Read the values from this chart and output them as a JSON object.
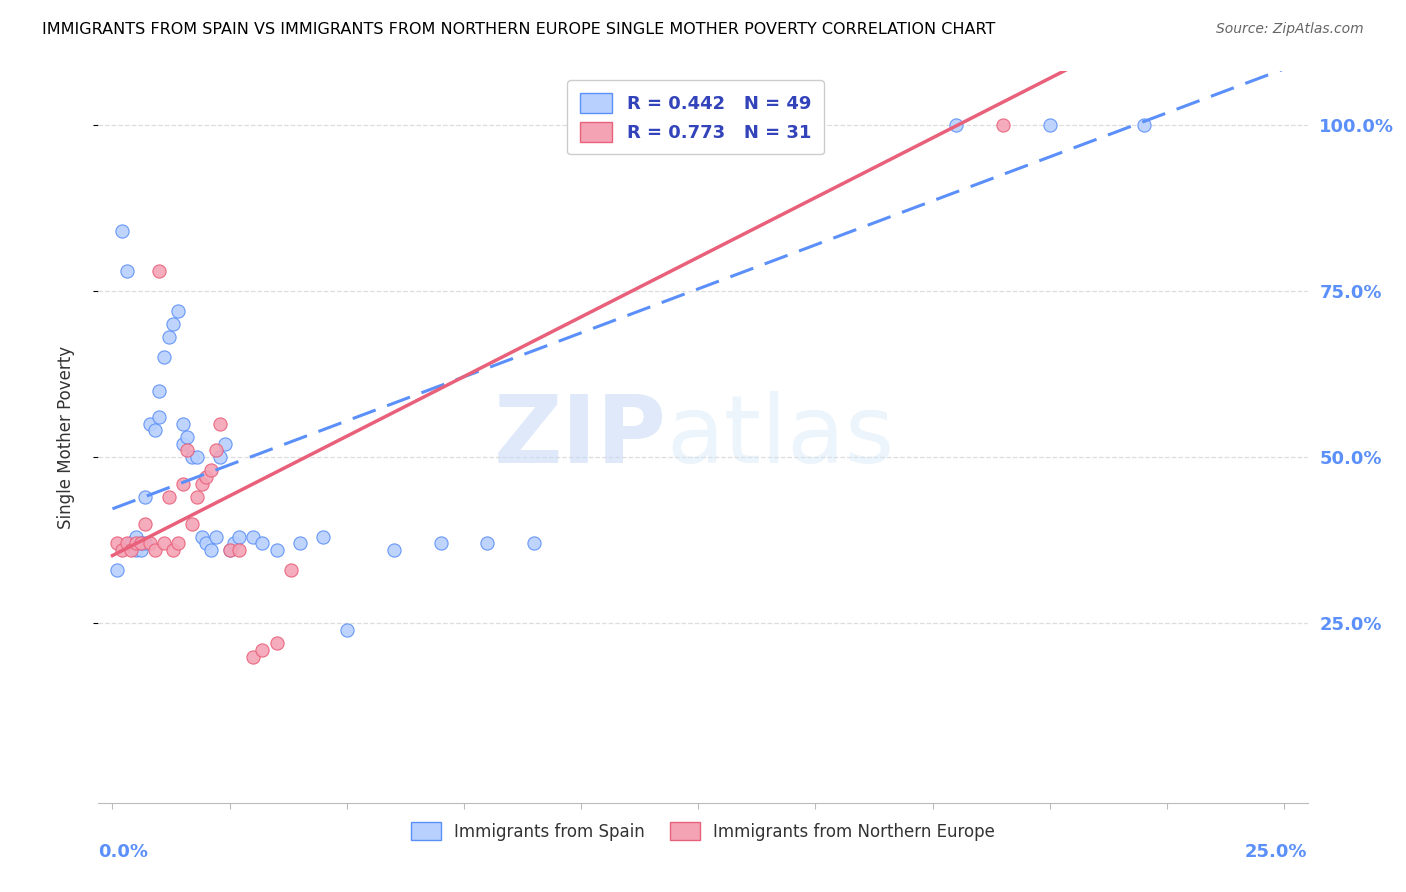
{
  "title": "IMMIGRANTS FROM SPAIN VS IMMIGRANTS FROM NORTHERN EUROPE SINGLE MOTHER POVERTY CORRELATION CHART",
  "source": "Source: ZipAtlas.com",
  "ylabel": "Single Mother Poverty",
  "spain_color": "#5b8ff9",
  "spain_color_light": "#b8d0fd",
  "northern_europe_color": "#f4a3b5",
  "northern_europe_color_dark": "#e8607a",
  "spain_R": 0.442,
  "spain_N": 49,
  "northern_europe_R": 0.773,
  "northern_europe_N": 31,
  "xlim": [
    0.0,
    0.25
  ],
  "ylim": [
    0.0,
    1.02
  ],
  "yticks": [
    0.25,
    0.5,
    0.75,
    1.0
  ],
  "ytick_labels": [
    "25.0%",
    "50.0%",
    "75.0%",
    "100.0%"
  ],
  "xtick_labels": [
    "0.0%",
    "25.0%"
  ],
  "watermark_zip": "ZIP",
  "watermark_atlas": "atlas",
  "background_color": "#ffffff",
  "grid_color": "#dddddd",
  "spain_x": [
    0.001,
    0.002,
    0.003,
    0.004,
    0.005,
    0.005,
    0.005,
    0.006,
    0.006,
    0.007,
    0.007,
    0.008,
    0.009,
    0.01,
    0.01,
    0.011,
    0.012,
    0.013,
    0.014,
    0.015,
    0.015,
    0.016,
    0.017,
    0.018,
    0.019,
    0.02,
    0.021,
    0.022,
    0.023,
    0.024,
    0.025,
    0.026,
    0.027,
    0.03,
    0.032,
    0.035,
    0.04,
    0.045,
    0.05,
    0.06,
    0.07,
    0.08,
    0.09,
    0.1,
    0.11,
    0.15,
    0.18,
    0.2,
    0.22
  ],
  "spain_y": [
    0.33,
    0.84,
    0.78,
    0.37,
    0.36,
    0.37,
    0.38,
    0.36,
    0.37,
    0.44,
    0.37,
    0.55,
    0.54,
    0.56,
    0.6,
    0.65,
    0.68,
    0.7,
    0.72,
    0.55,
    0.52,
    0.53,
    0.5,
    0.5,
    0.38,
    0.37,
    0.36,
    0.38,
    0.5,
    0.52,
    0.36,
    0.37,
    0.38,
    0.38,
    0.37,
    0.36,
    0.37,
    0.38,
    0.24,
    0.36,
    0.37,
    0.37,
    0.37,
    1.0,
    1.0,
    1.0,
    1.0,
    1.0,
    1.0
  ],
  "ne_x": [
    0.001,
    0.002,
    0.003,
    0.004,
    0.005,
    0.006,
    0.007,
    0.008,
    0.009,
    0.01,
    0.011,
    0.012,
    0.013,
    0.014,
    0.015,
    0.016,
    0.017,
    0.018,
    0.019,
    0.02,
    0.021,
    0.022,
    0.023,
    0.025,
    0.027,
    0.03,
    0.032,
    0.035,
    0.038,
    0.1,
    0.19
  ],
  "ne_y": [
    0.37,
    0.36,
    0.37,
    0.36,
    0.37,
    0.37,
    0.4,
    0.37,
    0.36,
    0.78,
    0.37,
    0.44,
    0.36,
    0.37,
    0.46,
    0.51,
    0.4,
    0.44,
    0.46,
    0.47,
    0.48,
    0.51,
    0.55,
    0.36,
    0.36,
    0.2,
    0.21,
    0.22,
    0.33,
    1.0,
    1.0
  ]
}
